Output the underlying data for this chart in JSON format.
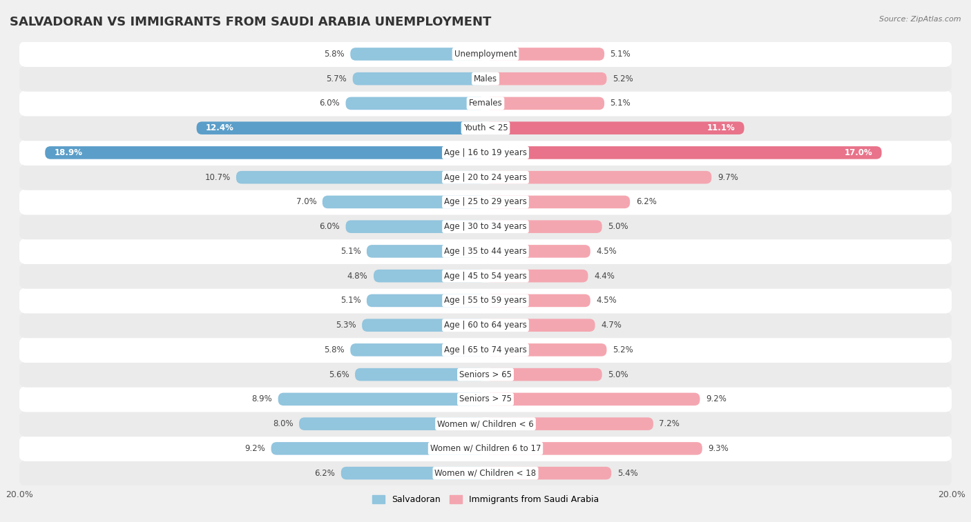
{
  "title": "SALVADORAN VS IMMIGRANTS FROM SAUDI ARABIA UNEMPLOYMENT",
  "source": "Source: ZipAtlas.com",
  "categories": [
    "Unemployment",
    "Males",
    "Females",
    "Youth < 25",
    "Age | 16 to 19 years",
    "Age | 20 to 24 years",
    "Age | 25 to 29 years",
    "Age | 30 to 34 years",
    "Age | 35 to 44 years",
    "Age | 45 to 54 years",
    "Age | 55 to 59 years",
    "Age | 60 to 64 years",
    "Age | 65 to 74 years",
    "Seniors > 65",
    "Seniors > 75",
    "Women w/ Children < 6",
    "Women w/ Children 6 to 17",
    "Women w/ Children < 18"
  ],
  "salvadoran": [
    5.8,
    5.7,
    6.0,
    12.4,
    18.9,
    10.7,
    7.0,
    6.0,
    5.1,
    4.8,
    5.1,
    5.3,
    5.8,
    5.6,
    8.9,
    8.0,
    9.2,
    6.2
  ],
  "saudi": [
    5.1,
    5.2,
    5.1,
    11.1,
    17.0,
    9.7,
    6.2,
    5.0,
    4.5,
    4.4,
    4.5,
    4.7,
    5.2,
    5.0,
    9.2,
    7.2,
    9.3,
    5.4
  ],
  "salvadoran_color": "#92c5de",
  "saudi_color": "#f4a6b0",
  "highlight_salvadoran_color": "#5b9ec9",
  "highlight_saudi_color": "#e8738a",
  "axis_max": 20.0,
  "bar_height": 0.52,
  "label_fontsize": 8.5,
  "category_fontsize": 8.5,
  "title_fontsize": 13,
  "legend_fontsize": 9,
  "bg_color": "#f0f0f0",
  "row_color_even": "#ffffff",
  "row_color_odd": "#ebebeb"
}
